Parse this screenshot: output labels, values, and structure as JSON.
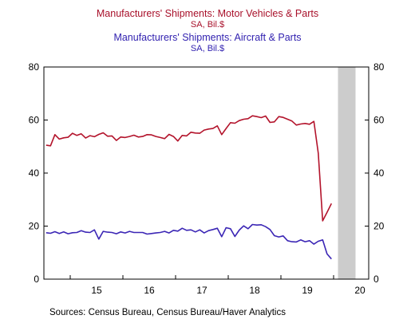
{
  "chart_data": {
    "type": "line",
    "legend": [
      {
        "title": "Manufacturers' Shipments: Motor Vehicles & Parts",
        "unit": "SA, Bil.$"
      },
      {
        "title": "Manufacturers' Shipments: Aircraft & Parts",
        "unit": "SA, Bil.$"
      }
    ],
    "x_tick_labels": [
      "15",
      "16",
      "17",
      "18",
      "19",
      "20"
    ],
    "y_ticks_left": [
      0,
      20,
      40,
      60,
      80
    ],
    "y_ticks_right": [
      0,
      20,
      40,
      60,
      80
    ],
    "ylim": [
      0,
      80
    ],
    "xlim": [
      "2014-07",
      "2020-09"
    ],
    "grid": false,
    "recession_shading": {
      "start": "2020-02",
      "end": "2020-05"
    },
    "series": [
      {
        "name": "Manufacturers' Shipments: Motor Vehicles & Parts",
        "axis": "left",
        "color": "#b3132b",
        "start": "2014-07",
        "values": [
          50.5,
          50.3,
          54.5,
          52.8,
          53.3,
          53.5,
          55.0,
          54.2,
          54.8,
          53.2,
          54.1,
          53.7,
          54.6,
          55.2,
          53.9,
          54.0,
          52.3,
          53.6,
          53.4,
          53.8,
          54.3,
          53.6,
          53.8,
          54.5,
          54.4,
          53.8,
          53.4,
          53.0,
          54.6,
          53.8,
          52.1,
          54.2,
          54.0,
          55.4,
          55.1,
          55.0,
          56.2,
          56.6,
          56.8,
          57.8,
          54.5,
          56.8,
          59.0,
          58.8,
          59.8,
          60.3,
          60.5,
          61.6,
          61.3,
          60.9,
          61.5,
          59.1,
          59.3,
          61.3,
          61.0,
          60.3,
          59.6,
          58.1,
          58.5,
          58.7,
          58.4,
          59.5,
          47.5,
          22.0,
          25.2,
          28.5
        ]
      },
      {
        "name": "Manufacturers' Shipments: Aircraft & Parts",
        "axis": "right",
        "color": "#3b26b5",
        "start": "2014-07",
        "values": [
          17.5,
          17.3,
          17.9,
          17.2,
          17.8,
          17.1,
          17.5,
          17.6,
          18.3,
          17.7,
          17.6,
          18.6,
          15.1,
          18.0,
          17.7,
          17.6,
          17.1,
          17.8,
          17.4,
          18.0,
          17.6,
          17.6,
          17.6,
          17.0,
          17.2,
          17.4,
          17.6,
          18.0,
          17.4,
          18.4,
          18.1,
          19.2,
          18.4,
          18.6,
          17.8,
          18.6,
          17.4,
          18.3,
          18.7,
          19.2,
          16.0,
          19.4,
          19.0,
          16.1,
          18.5,
          20.1,
          19.0,
          20.6,
          20.4,
          20.5,
          19.8,
          18.7,
          16.4,
          15.9,
          16.3,
          14.5,
          14.1,
          14.0,
          14.8,
          14.1,
          14.5,
          13.2,
          14.3,
          14.8,
          9.5,
          7.6
        ]
      }
    ]
  },
  "source_text": "Sources:  Census Bureau, Census Bureau/Haver Analytics"
}
